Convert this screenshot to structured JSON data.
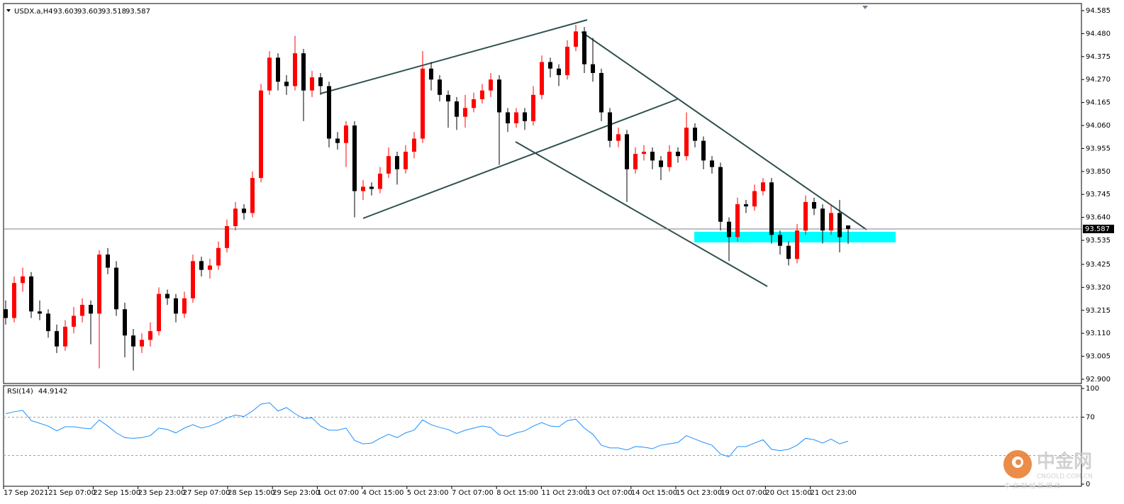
{
  "chart_data": [
    {
      "type": "candlestick",
      "title": "USDX.a,H4",
      "up_color": "#ff0000",
      "down_color": "#000000",
      "line_color": "#808080",
      "ylim": [
        92.9,
        94.585
      ],
      "yticks": [
        94.585,
        {
          "value": 94.48,
          "label": "94.480"
        },
        94.375,
        {
          "value": 94.27,
          "label": "94.270"
        },
        94.165,
        {
          "value": 94.06,
          "label": "94.060"
        },
        93.955,
        {
          "value": 93.85,
          "label": "93.850"
        },
        93.745,
        {
          "value": 93.64,
          "label": "93.640"
        },
        93.535,
        93.425,
        {
          "value": 93.32,
          "label": "93.320"
        },
        93.215,
        {
          "value": 93.11,
          "label": "93.110"
        },
        93.005,
        {
          "value": 92.9,
          "label": "92.900"
        }
      ],
      "xtick_labels": [
        "17 Sep 2021",
        "21 Sep 07:00",
        "22 Sep 15:00",
        "23 Sep 23:00",
        "27 Sep 07:00",
        "28 Sep 15:00",
        "29 Sep 23:00",
        "1 Oct 07:00",
        "4 Oct 15:00",
        "5 Oct 23:00",
        "7 Oct 07:00",
        "8 Oct 15:00",
        "11 Oct 23:00",
        "13 Oct 07:00",
        "14 Oct 15:00",
        "15 Oct 23:00",
        "19 Oct 07:00",
        "20 Oct 15:00",
        "21 Oct 23:00"
      ],
      "candles": [
        [
          93.22,
          93.26,
          93.15,
          93.18
        ],
        [
          93.18,
          93.37,
          93.16,
          93.34
        ],
        [
          93.34,
          93.41,
          93.3,
          93.37
        ],
        [
          93.37,
          93.39,
          93.18,
          93.21
        ],
        [
          93.21,
          93.26,
          93.17,
          93.2
        ],
        [
          93.2,
          93.22,
          93.09,
          93.12
        ],
        [
          93.12,
          93.15,
          93.02,
          93.05
        ],
        [
          93.05,
          93.17,
          93.03,
          93.14
        ],
        [
          93.14,
          93.23,
          93.11,
          93.19
        ],
        [
          93.19,
          93.27,
          93.16,
          93.24
        ],
        [
          93.24,
          93.26,
          93.06,
          93.2
        ],
        [
          93.2,
          93.49,
          92.95,
          93.47
        ],
        [
          93.47,
          93.5,
          93.38,
          93.41
        ],
        [
          93.41,
          93.44,
          93.19,
          93.22
        ],
        [
          93.22,
          93.25,
          93.0,
          93.1
        ],
        [
          93.1,
          93.13,
          92.94,
          93.05
        ],
        [
          93.05,
          93.11,
          93.02,
          93.08
        ],
        [
          93.08,
          93.16,
          93.05,
          93.12
        ],
        [
          93.12,
          93.32,
          93.1,
          93.29
        ],
        [
          93.29,
          93.31,
          93.24,
          93.27
        ],
        [
          93.27,
          93.29,
          93.16,
          93.2
        ],
        [
          93.2,
          93.3,
          93.18,
          93.27
        ],
        [
          93.27,
          93.47,
          93.25,
          93.44
        ],
        [
          93.44,
          93.46,
          93.37,
          93.4
        ],
        [
          93.4,
          93.45,
          93.36,
          93.42
        ],
        [
          93.42,
          93.53,
          93.4,
          93.5
        ],
        [
          93.5,
          93.63,
          93.48,
          93.6
        ],
        [
          93.6,
          93.71,
          93.58,
          93.68
        ],
        [
          93.68,
          93.7,
          93.63,
          93.66
        ],
        [
          93.66,
          93.85,
          93.64,
          93.82
        ],
        [
          93.82,
          94.25,
          93.8,
          94.22
        ],
        [
          94.22,
          94.4,
          94.2,
          94.37
        ],
        [
          94.37,
          94.39,
          94.22,
          94.26
        ],
        [
          94.26,
          94.29,
          94.2,
          94.24
        ],
        [
          94.24,
          94.47,
          94.22,
          94.39
        ],
        [
          94.39,
          94.41,
          94.08,
          94.22
        ],
        [
          94.22,
          94.31,
          94.19,
          94.28
        ],
        [
          94.28,
          94.3,
          94.2,
          94.24
        ],
        [
          94.24,
          94.26,
          93.96,
          94.0
        ],
        [
          94.0,
          94.03,
          93.95,
          93.98
        ],
        [
          93.98,
          94.08,
          93.87,
          94.06
        ],
        [
          94.06,
          94.08,
          93.64,
          93.76
        ],
        [
          93.76,
          93.81,
          93.72,
          93.78
        ],
        [
          93.78,
          93.8,
          93.74,
          93.77
        ],
        [
          93.77,
          93.87,
          93.75,
          93.84
        ],
        [
          93.84,
          93.96,
          93.82,
          93.92
        ],
        [
          93.92,
          93.94,
          93.79,
          93.86
        ],
        [
          93.86,
          93.97,
          93.84,
          93.94
        ],
        [
          93.94,
          94.03,
          93.91,
          94.0
        ],
        [
          94.0,
          94.4,
          93.98,
          94.32
        ],
        [
          94.32,
          94.35,
          94.22,
          94.27
        ],
        [
          94.27,
          94.29,
          94.17,
          94.2
        ],
        [
          94.2,
          94.22,
          94.05,
          94.17
        ],
        [
          94.17,
          94.19,
          94.04,
          94.1
        ],
        [
          94.1,
          94.2,
          94.05,
          94.14
        ],
        [
          94.14,
          94.21,
          94.12,
          94.18
        ],
        [
          94.18,
          94.25,
          94.16,
          94.22
        ],
        [
          94.22,
          94.3,
          94.19,
          94.27
        ],
        [
          94.27,
          94.29,
          93.88,
          94.12
        ],
        [
          94.12,
          94.14,
          94.03,
          94.07
        ],
        [
          94.07,
          94.14,
          94.05,
          94.12
        ],
        [
          94.12,
          94.14,
          94.04,
          94.08
        ],
        [
          94.08,
          94.24,
          94.06,
          94.2
        ],
        [
          94.2,
          94.38,
          94.18,
          94.35
        ],
        [
          94.35,
          94.37,
          94.28,
          94.32
        ],
        [
          94.32,
          94.34,
          94.24,
          94.29
        ],
        [
          94.29,
          94.45,
          94.27,
          94.42
        ],
        [
          94.42,
          94.52,
          94.4,
          94.49
        ],
        [
          94.49,
          94.51,
          94.3,
          94.34
        ],
        [
          94.34,
          94.46,
          94.26,
          94.3
        ],
        [
          94.3,
          94.32,
          94.08,
          94.12
        ],
        [
          94.12,
          94.14,
          93.96,
          93.99
        ],
        [
          93.99,
          94.05,
          93.96,
          94.02
        ],
        [
          94.02,
          94.04,
          93.71,
          93.86
        ],
        [
          93.86,
          93.96,
          93.84,
          93.93
        ],
        [
          93.93,
          93.97,
          93.9,
          93.94
        ],
        [
          93.94,
          93.96,
          93.86,
          93.9
        ],
        [
          93.9,
          93.92,
          93.81,
          93.87
        ],
        [
          93.87,
          93.97,
          93.85,
          93.94
        ],
        [
          93.94,
          93.96,
          93.89,
          93.92
        ],
        [
          93.92,
          94.12,
          93.9,
          94.05
        ],
        [
          94.05,
          94.07,
          93.96,
          93.99
        ],
        [
          93.99,
          94.01,
          93.86,
          93.9
        ],
        [
          93.9,
          93.92,
          93.84,
          93.87
        ],
        [
          93.87,
          93.89,
          93.58,
          93.62
        ],
        [
          93.62,
          93.64,
          93.44,
          93.55
        ],
        [
          93.55,
          93.73,
          93.53,
          93.7
        ],
        [
          93.7,
          93.72,
          93.66,
          93.69
        ],
        [
          93.69,
          93.79,
          93.67,
          93.76
        ],
        [
          93.76,
          93.82,
          93.74,
          93.8
        ],
        [
          93.8,
          93.82,
          93.52,
          93.56
        ],
        [
          93.56,
          93.58,
          93.47,
          93.51
        ],
        [
          93.51,
          93.53,
          93.42,
          93.45
        ],
        [
          93.45,
          93.61,
          93.43,
          93.58
        ],
        [
          93.58,
          93.74,
          93.56,
          93.71
        ],
        [
          93.71,
          93.73,
          93.65,
          93.68
        ],
        [
          93.68,
          93.7,
          93.52,
          93.58
        ],
        [
          93.58,
          93.7,
          93.56,
          93.66
        ],
        [
          93.66,
          93.72,
          93.48,
          93.55
        ],
        [
          93.603,
          93.603,
          93.518,
          93.587
        ]
      ]
    },
    {
      "type": "line",
      "title": "RSI(14)",
      "color": "#1e90ff",
      "ylim": [
        0,
        100
      ],
      "yticks": [
        100,
        70,
        0
      ],
      "levels": [
        70,
        30
      ],
      "values": [
        73.6,
        75.7,
        77.1,
        66.4,
        63.6,
        60.7,
        55.7,
        60.0,
        60.0,
        58.6,
        57.9,
        67.1,
        60.7,
        53.6,
        48.6,
        47.9,
        48.6,
        50.7,
        58.6,
        57.1,
        53.6,
        58.6,
        62.1,
        58.6,
        60.7,
        64.3,
        69.3,
        72.1,
        70.7,
        76.4,
        83.6,
        85.0,
        76.4,
        80.0,
        73.6,
        68.6,
        69.3,
        60.7,
        56.4,
        56.4,
        58.6,
        45.7,
        42.1,
        42.9,
        47.9,
        52.1,
        48.6,
        53.6,
        56.4,
        67.1,
        62.1,
        59.3,
        57.1,
        52.9,
        56.4,
        58.6,
        60.7,
        59.3,
        51.4,
        50.0,
        53.6,
        55.7,
        60.7,
        64.3,
        60.7,
        60.0,
        66.4,
        67.9,
        58.6,
        52.1,
        40.7,
        37.9,
        37.9,
        35.7,
        39.3,
        38.6,
        37.1,
        40.7,
        42.1,
        43.6,
        50.7,
        47.1,
        43.6,
        40.7,
        31.4,
        28.6,
        39.3,
        39.3,
        42.9,
        46.4,
        36.4,
        35.0,
        36.4,
        40.7,
        47.9,
        46.4,
        42.9,
        47.1,
        42.1,
        44.9142
      ]
    }
  ],
  "watermark": {
    "name": "中金网",
    "site": "CNGOLD.COM.CN",
    "tagline": "中 文 财 经 新 媒 体"
  }
}
